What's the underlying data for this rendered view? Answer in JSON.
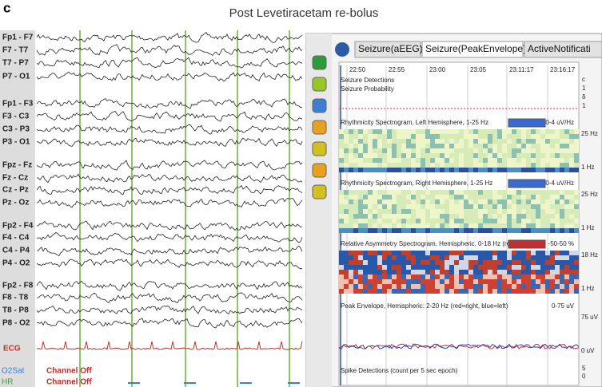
{
  "panel_letter": "c",
  "title": "Post Levetiracetam re-bolus",
  "eeg": {
    "channels": [
      "Fp1 - F7",
      "F7 - T7",
      "T7 - P7",
      "P7 - O1",
      "Fp1 - F3",
      "F3 - C3",
      "C3 - P3",
      "P3 - O1",
      "Fpz - Fz",
      "Fz - Cz",
      "Cz - Pz",
      "Pz - Oz",
      "Fp2 - F4",
      "F4 - C4",
      "C4 - P4",
      "P4 - O2",
      "Fp2 - F8",
      "F8 - T8",
      "T8 - P8",
      "P8 - O2"
    ],
    "ecg": "ECG",
    "o2sat": "O2Sat",
    "hr": "HR",
    "status": [
      "Channel Off",
      "Channel Off"
    ]
  },
  "monitor": {
    "tabs": [
      "Seizure(aEEG)",
      "Seizure(PeakEnvelope)",
      "ActiveNotificati"
    ],
    "times": [
      "22:50",
      "22:55",
      "23:00",
      "23:05",
      "23:11:17",
      "23:16:17"
    ],
    "seizure": {
      "labels": [
        "Seizure Detections",
        "Seizure Probability"
      ],
      "side": [
        "c",
        "1",
        "δ",
        "1"
      ]
    },
    "rows": [
      {
        "label": "Rhythmicity Spectrogram, Left Hemisphere, 1-25 Hz",
        "scale": "0-4 uV/Hz",
        "top": "25 Hz",
        "bottom": "1 Hz"
      },
      {
        "label": "Rhythmicity Spectrogram, Right Hemisphere, 1-25 Hz",
        "scale": "0-4 uV/Hz",
        "top": "25 Hz",
        "bottom": "1 Hz"
      },
      {
        "label": "Relative Asymmetry Spectrogram, Hemispheric, 0-18 Hz (red=rig",
        "scale": "-50-50 %",
        "top": "18 Hz",
        "bottom": "1 Hz"
      },
      {
        "label": "Peak Envelope, Hemispheric: 2-20 Hz (red=right, blue=left)",
        "scale": "0-75 uV",
        "top": "75 uV",
        "bottom": "0 uV"
      }
    ],
    "spike": {
      "label": "Spike Detections (count per 5 sec epoch)",
      "top": "5",
      "bottom": "0"
    }
  }
}
